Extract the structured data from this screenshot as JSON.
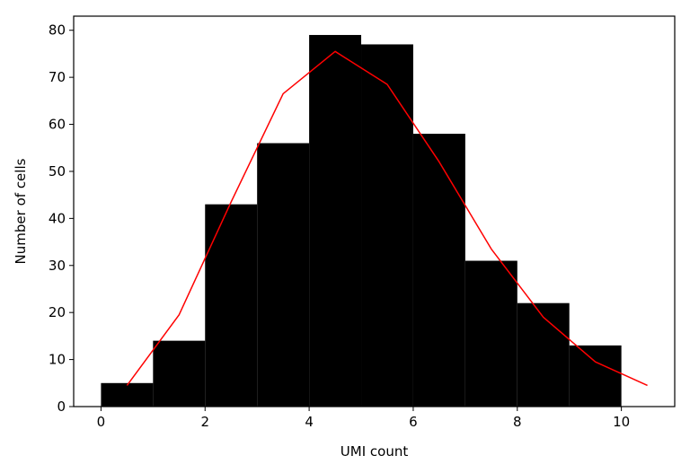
{
  "chart_data": {
    "type": "bar",
    "title": "",
    "xlabel": "UMI count",
    "ylabel": "Number of cells",
    "xlim": [
      -0.525,
      11.025
    ],
    "ylim": [
      0,
      83
    ],
    "xticks": [
      0,
      2,
      4,
      6,
      8,
      10
    ],
    "yticks": [
      0,
      10,
      20,
      30,
      40,
      50,
      60,
      70,
      80
    ],
    "bins": [
      {
        "x0": 0,
        "x1": 1,
        "value": 5
      },
      {
        "x0": 1,
        "x1": 2,
        "value": 14
      },
      {
        "x0": 2,
        "x1": 3,
        "value": 43
      },
      {
        "x0": 3,
        "x1": 4,
        "value": 56
      },
      {
        "x0": 4,
        "x1": 5,
        "value": 79
      },
      {
        "x0": 5,
        "x1": 6,
        "value": 77
      },
      {
        "x0": 6,
        "x1": 7,
        "value": 58
      },
      {
        "x0": 7,
        "x1": 8,
        "value": 31
      },
      {
        "x0": 8,
        "x1": 9,
        "value": 22
      },
      {
        "x0": 9,
        "x1": 10,
        "value": 13
      }
    ],
    "fit_line": {
      "x": [
        0.5,
        1.5,
        2.5,
        3.5,
        4.5,
        5.5,
        6.5,
        7.5,
        8.5,
        9.5,
        10.5
      ],
      "y": [
        4.5,
        19.5,
        43.5,
        66.5,
        75.5,
        68.5,
        52.0,
        33.5,
        19.0,
        9.5,
        4.5
      ]
    },
    "grid": false,
    "bar_color": "#000000",
    "line_color": "#ff0000"
  }
}
